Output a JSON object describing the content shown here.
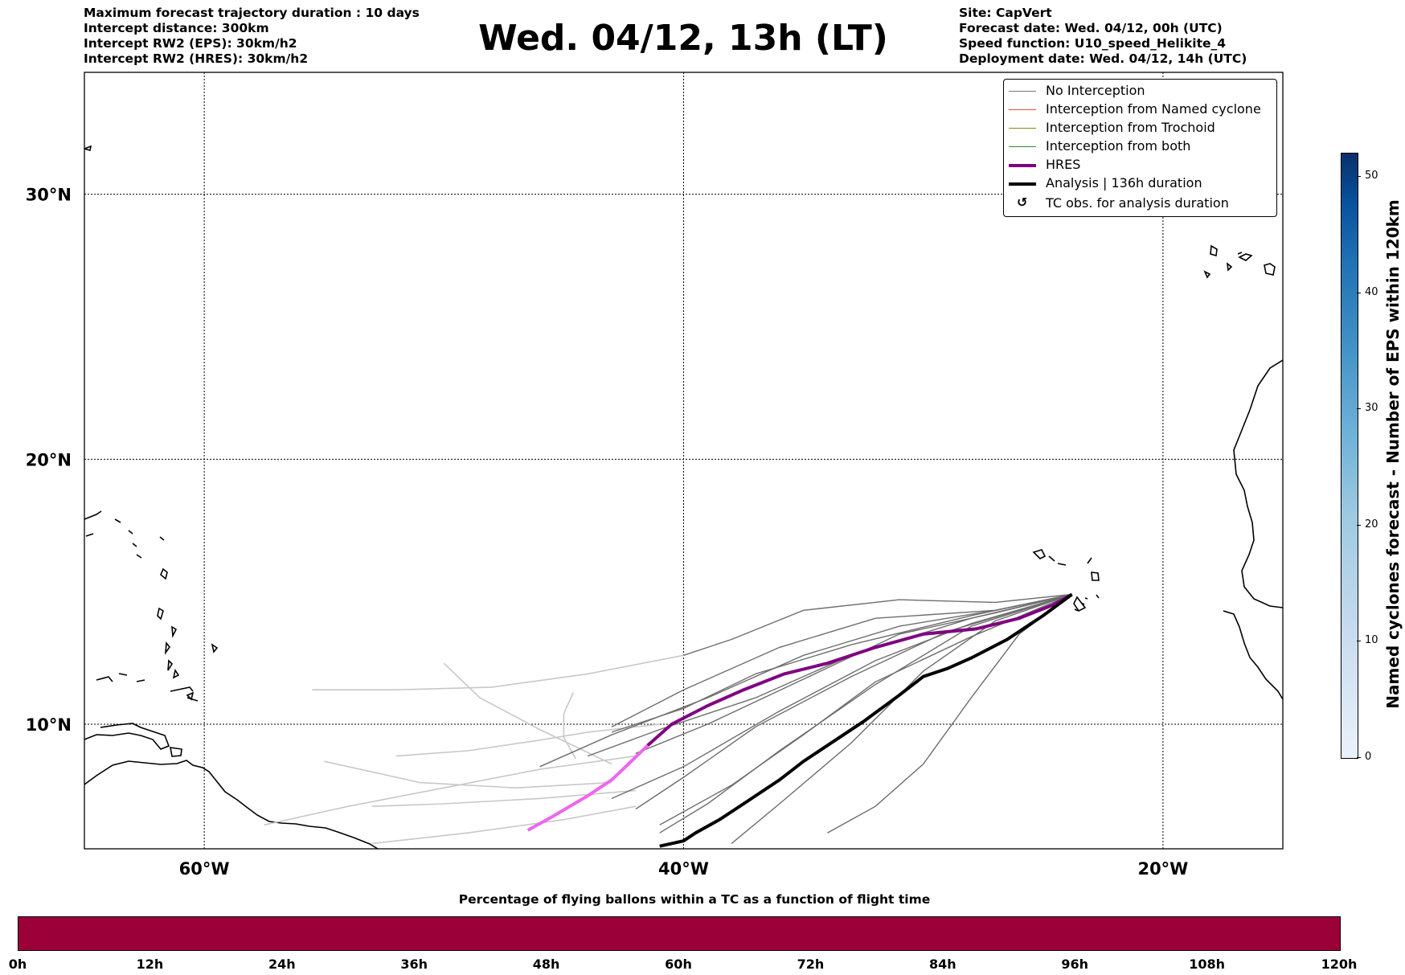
{
  "header_left": [
    "Maximum forecast trajectory duration : 10 days",
    "Intercept distance: 300km",
    "Intercept RW2 (EPS):  30km/h2",
    "Intercept RW2 (HRES): 30km/h2"
  ],
  "title": "Wed. 04/12, 13h (LT)",
  "header_right": [
    "Site: CapVert",
    "Forecast date: Wed. 04/12, 00h (UTC)",
    "Speed function: U10_speed_Helikite_4",
    "Deployment date: Wed. 04/12, 14h (UTC)"
  ],
  "map": {
    "lon_range": [
      -65,
      -15
    ],
    "lat_range": [
      5.3,
      34.6
    ],
    "lon_ticks": [
      {
        "value": -60,
        "label": "60°W"
      },
      {
        "value": -40,
        "label": "40°W"
      },
      {
        "value": -20,
        "label": "20°W"
      }
    ],
    "lat_ticks": [
      {
        "value": 30,
        "label": "30°N"
      },
      {
        "value": 20,
        "label": "20°N"
      },
      {
        "value": 10,
        "label": "10°N"
      }
    ],
    "gridlines": "dotted",
    "launch_site": {
      "lon": -23.8,
      "lat": 14.9
    }
  },
  "legend": {
    "placement": "top-right",
    "items": [
      {
        "label": "No Interception",
        "color": "#777777",
        "style": "thin"
      },
      {
        "label": "Interception from Named cyclone",
        "color": "#e8502a",
        "style": "thin"
      },
      {
        "label": "Interception from Trochoid",
        "color": "#8a8a10",
        "style": "thin"
      },
      {
        "label": "Interception from both",
        "color": "#2e8b2e",
        "style": "thin"
      },
      {
        "label": "HRES",
        "color": "#800080",
        "style": "thick"
      },
      {
        "label": "Analysis | 136h duration",
        "color": "#000000",
        "style": "thick"
      },
      {
        "label": "TC obs. for analysis duration",
        "color": "#000000",
        "style": "marker"
      }
    ]
  },
  "colorbar": {
    "label": "Named cyclones forecast - Number of EPS within 120km",
    "min": 0,
    "max": 52,
    "ticks": [
      0,
      10,
      20,
      30,
      40,
      50
    ]
  },
  "time_bar": {
    "title": "Percentage of flying ballons within a TC as a function of flight time",
    "color": "#9b0039",
    "ticks": [
      "0h",
      "12h",
      "24h",
      "36h",
      "48h",
      "60h",
      "72h",
      "84h",
      "96h",
      "108h",
      "120h"
    ]
  },
  "chart_data": {
    "type": "line",
    "x_unit": "longitude (deg)",
    "y_unit": "latitude (deg)",
    "series": [
      {
        "name": "HRES",
        "color": "#800080",
        "lon": [
          -23.8,
          -24.6,
          -26,
          -27.8,
          -30,
          -32,
          -34,
          -35.8,
          -37.5,
          -39,
          -40.5,
          -41.5,
          -42.3,
          -43,
          -44,
          -45.5,
          -46.5
        ],
        "lat": [
          14.9,
          14.5,
          14.0,
          13.6,
          13.4,
          12.9,
          12.3,
          11.9,
          11.3,
          10.7,
          10.0,
          9.2,
          8.5,
          7.9,
          7.3,
          6.5,
          6.0
        ]
      },
      {
        "name": "Analysis | 136h duration",
        "color": "#000000",
        "lon": [
          -23.8,
          -25,
          -26.5,
          -28,
          -29,
          -30,
          -31,
          -32.5,
          -34,
          -35,
          -36,
          -37.5,
          -38.5,
          -39.5,
          -40,
          -40.5,
          -41
        ],
        "lat": [
          14.9,
          14.1,
          13.2,
          12.5,
          12.1,
          11.8,
          11.1,
          10.1,
          9.2,
          8.6,
          7.9,
          7.0,
          6.4,
          5.9,
          5.6,
          5.5,
          5.4
        ]
      }
    ],
    "ensemble_no_interception": {
      "color": "#6e6e6e",
      "members": [
        {
          "lon": [
            -23.8,
            -27,
            -31,
            -35,
            -38,
            -40
          ],
          "lat": [
            14.9,
            14.6,
            14.7,
            14.3,
            13.2,
            12.6
          ]
        },
        {
          "lon": [
            -23.8,
            -27,
            -32,
            -36,
            -40,
            -43
          ],
          "lat": [
            14.9,
            14.3,
            14.0,
            12.9,
            11.3,
            9.9
          ]
        },
        {
          "lon": [
            -23.8,
            -28,
            -33,
            -37,
            -41,
            -44
          ],
          "lat": [
            14.9,
            14.0,
            12.6,
            11.0,
            9.8,
            8.8
          ]
        },
        {
          "lon": [
            -23.8,
            -28,
            -32,
            -36,
            -40,
            -43
          ],
          "lat": [
            14.9,
            13.8,
            12.4,
            10.5,
            8.4,
            7.2
          ]
        },
        {
          "lon": [
            -23.8,
            -29,
            -33,
            -37,
            -40,
            -42
          ],
          "lat": [
            14.9,
            13.5,
            11.8,
            9.9,
            8.0,
            6.8
          ]
        },
        {
          "lon": [
            -23.8,
            -28,
            -32,
            -36,
            -39,
            -41
          ],
          "lat": [
            14.9,
            13.7,
            11.5,
            9.0,
            7.0,
            5.9
          ]
        },
        {
          "lon": [
            -23.8,
            -27,
            -30,
            -33,
            -36,
            -38
          ],
          "lat": [
            14.9,
            13.9,
            12.0,
            9.3,
            7.0,
            5.5
          ]
        },
        {
          "lon": [
            -23.8,
            -27,
            -31,
            -35,
            -39,
            -42
          ],
          "lat": [
            14.9,
            14.2,
            13.4,
            11.7,
            10.0,
            8.9
          ]
        },
        {
          "lon": [
            -23.8,
            -26,
            -28,
            -30,
            -32,
            -34
          ],
          "lat": [
            14.9,
            13.4,
            11.0,
            8.5,
            6.9,
            5.9
          ]
        },
        {
          "lon": [
            -23.8,
            -27,
            -31,
            -35,
            -39,
            -43,
            -46
          ],
          "lat": [
            14.9,
            14.3,
            13.7,
            12.6,
            11.0,
            9.6,
            8.4
          ]
        },
        {
          "lon": [
            -23.8,
            -28,
            -33,
            -37,
            -40,
            -43
          ],
          "lat": [
            14.9,
            14.1,
            13.0,
            11.9,
            10.6,
            9.7
          ]
        },
        {
          "lon": [
            -23.8,
            -28,
            -32,
            -35,
            -38,
            -41
          ],
          "lat": [
            14.9,
            13.3,
            11.6,
            9.6,
            7.7,
            6.2
          ]
        }
      ]
    },
    "ensemble_faded": {
      "color": "#c8c8c8",
      "members": [
        {
          "lon": [
            -40,
            -44,
            -48,
            -52,
            -55.5
          ],
          "lat": [
            12.6,
            11.9,
            11.4,
            11.3,
            11.3
          ]
        },
        {
          "lon": [
            -41,
            -44,
            -46,
            -49,
            -52
          ],
          "lat": [
            10.0,
            9.7,
            9.4,
            9.0,
            8.8
          ]
        },
        {
          "lon": [
            -42,
            -46,
            -50,
            -54,
            -57.5
          ],
          "lat": [
            8.8,
            8.3,
            7.6,
            6.9,
            6.2
          ]
        },
        {
          "lon": [
            -42,
            -46,
            -50,
            -53
          ],
          "lat": [
            7.5,
            7.2,
            7.0,
            6.9
          ]
        },
        {
          "lon": [
            -42,
            -45,
            -49,
            -53
          ],
          "lat": [
            6.9,
            6.4,
            5.9,
            5.5
          ]
        },
        {
          "lon": [
            -43,
            -46,
            -48.5,
            -50
          ],
          "lat": [
            8.5,
            9.8,
            11.0,
            12.3
          ]
        },
        {
          "lon": [
            -44.5,
            -45,
            -45,
            -44.6
          ],
          "lat": [
            8.7,
            9.5,
            10.4,
            11.2
          ]
        },
        {
          "lon": [
            -43,
            -47,
            -51,
            -55
          ],
          "lat": [
            7.8,
            7.6,
            7.8,
            8.6
          ]
        }
      ]
    }
  }
}
